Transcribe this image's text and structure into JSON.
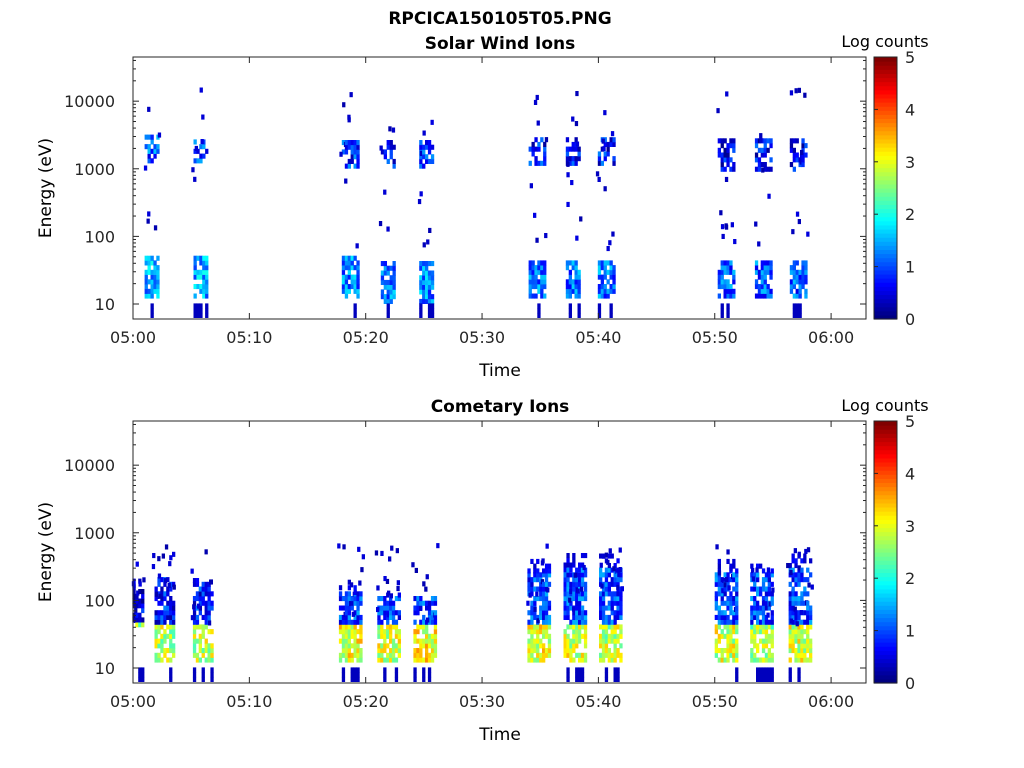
{
  "figure": {
    "title": "RPCICA150105T05.PNG"
  },
  "chart_data": [
    {
      "type": "heatmap",
      "title": "Solar Wind Ions",
      "xlabel": "Time",
      "ylabel": "Energy (eV)",
      "x_ticks": [
        "05:00",
        "05:10",
        "05:20",
        "05:30",
        "05:40",
        "05:50",
        "06:00"
      ],
      "xlim": [
        "05:00",
        "06:03"
      ],
      "y_scale": "log",
      "y_ticks": [
        10,
        100,
        1000,
        10000
      ],
      "y_tick_labels": [
        "10",
        "100",
        "1000",
        "10000"
      ],
      "ylim": [
        6,
        45000
      ],
      "colorbar": {
        "label": "Log counts",
        "range": [
          0,
          5
        ],
        "ticks": [
          "0",
          "1",
          "2",
          "3",
          "4",
          "5"
        ],
        "colormap": "jet"
      },
      "bursts": [
        {
          "t": 1.6,
          "w": 1.2,
          "low": [
            12,
            45
          ],
          "low_level": 2.0,
          "mid": [
            1200,
            3000
          ],
          "mid_level": 1.6
        },
        {
          "t": 5.7,
          "w": 1.0,
          "low": [
            12,
            45
          ],
          "low_level": 2.0,
          "mid": [
            1200,
            3000
          ],
          "mid_level": 1.6
        },
        {
          "t": 18.6,
          "w": 1.3,
          "low": [
            12,
            45
          ],
          "low_level": 1.8,
          "mid": [
            1000,
            2500
          ],
          "mid_level": 1.4
        },
        {
          "t": 21.9,
          "w": 1.2,
          "low": [
            10,
            40
          ],
          "low_level": 1.8,
          "mid": [
            1000,
            2500
          ],
          "mid_level": 1.4
        },
        {
          "t": 25.2,
          "w": 1.2,
          "low": [
            10,
            40
          ],
          "low_level": 1.8,
          "mid": [
            1000,
            2500
          ],
          "mid_level": 1.4
        },
        {
          "t": 34.7,
          "w": 1.4,
          "low": [
            12,
            40
          ],
          "low_level": 1.7,
          "mid": [
            1100,
            2500
          ],
          "mid_level": 1.3
        },
        {
          "t": 37.8,
          "w": 1.2,
          "low": [
            12,
            40
          ],
          "low_level": 1.7,
          "mid": [
            1100,
            2500
          ],
          "mid_level": 1.3
        },
        {
          "t": 40.6,
          "w": 1.3,
          "low": [
            12,
            40
          ],
          "low_level": 1.7,
          "mid": [
            1100,
            2500
          ],
          "mid_level": 1.3
        },
        {
          "t": 50.9,
          "w": 1.3,
          "low": [
            12,
            40
          ],
          "low_level": 1.6,
          "mid": [
            900,
            2500
          ],
          "mid_level": 1.2
        },
        {
          "t": 54.1,
          "w": 1.3,
          "low": [
            12,
            40
          ],
          "low_level": 1.6,
          "mid": [
            900,
            2500
          ],
          "mid_level": 1.2
        },
        {
          "t": 57.1,
          "w": 1.3,
          "low": [
            12,
            40
          ],
          "low_level": 1.6,
          "mid": [
            900,
            2500
          ],
          "mid_level": 1.2
        }
      ]
    },
    {
      "type": "heatmap",
      "title": "Cometary Ions",
      "xlabel": "Time",
      "ylabel": "Energy (eV)",
      "x_ticks": [
        "05:00",
        "05:10",
        "05:20",
        "05:30",
        "05:40",
        "05:50",
        "06:00"
      ],
      "xlim": [
        "05:00",
        "06:03"
      ],
      "y_scale": "log",
      "y_ticks": [
        10,
        100,
        1000,
        10000
      ],
      "y_tick_labels": [
        "10",
        "100",
        "1000",
        "10000"
      ],
      "ylim": [
        6,
        45000
      ],
      "colorbar": {
        "label": "Log counts",
        "range": [
          0,
          5
        ],
        "ticks": [
          "0",
          "1",
          "2",
          "3",
          "4",
          "5"
        ],
        "colormap": "jet"
      },
      "bursts": [
        {
          "t": 0.4,
          "w": 0.9,
          "low": [
            40,
            150
          ],
          "low_level": 1.0,
          "core": [
            12,
            45
          ],
          "core_level": 3.1,
          "top": 180
        },
        {
          "t": 2.6,
          "w": 1.5,
          "low": [
            12,
            200
          ],
          "low_level": 1.3,
          "core": [
            12,
            40
          ],
          "core_level": 3.4,
          "top": 200
        },
        {
          "t": 5.9,
          "w": 1.5,
          "low": [
            12,
            180
          ],
          "low_level": 1.3,
          "core": [
            12,
            40
          ],
          "core_level": 3.4,
          "top": 180
        },
        {
          "t": 18.6,
          "w": 1.8,
          "low": [
            12,
            120
          ],
          "low_level": 1.5,
          "core": [
            12,
            40
          ],
          "core_level": 3.6,
          "top": 150
        },
        {
          "t": 21.9,
          "w": 1.8,
          "low": [
            12,
            110
          ],
          "low_level": 1.5,
          "core": [
            12,
            40
          ],
          "core_level": 3.5,
          "top": 120
        },
        {
          "t": 25.0,
          "w": 1.8,
          "low": [
            12,
            110
          ],
          "low_level": 1.5,
          "core": [
            12,
            40
          ],
          "core_level": 3.7,
          "top": 120
        },
        {
          "t": 34.8,
          "w": 1.8,
          "low": [
            12,
            250
          ],
          "low_level": 1.5,
          "core": [
            12,
            40
          ],
          "core_level": 3.6,
          "top": 350
        },
        {
          "t": 37.9,
          "w": 1.8,
          "low": [
            12,
            260
          ],
          "low_level": 1.5,
          "core": [
            12,
            40
          ],
          "core_level": 3.5,
          "top": 450
        },
        {
          "t": 41.0,
          "w": 1.9,
          "low": [
            12,
            300
          ],
          "low_level": 1.5,
          "core": [
            12,
            40
          ],
          "core_level": 3.4,
          "top": 450
        },
        {
          "t": 50.9,
          "w": 1.8,
          "low": [
            12,
            250
          ],
          "low_level": 1.5,
          "core": [
            12,
            40
          ],
          "core_level": 3.5,
          "top": 500
        },
        {
          "t": 54.0,
          "w": 1.9,
          "low": [
            12,
            250
          ],
          "low_level": 1.5,
          "core": [
            12,
            40
          ],
          "core_level": 3.3,
          "top": 350
        },
        {
          "t": 57.3,
          "w": 1.9,
          "low": [
            12,
            300
          ],
          "low_level": 1.5,
          "core": [
            12,
            40
          ],
          "core_level": 3.5,
          "top": 450
        }
      ]
    }
  ]
}
